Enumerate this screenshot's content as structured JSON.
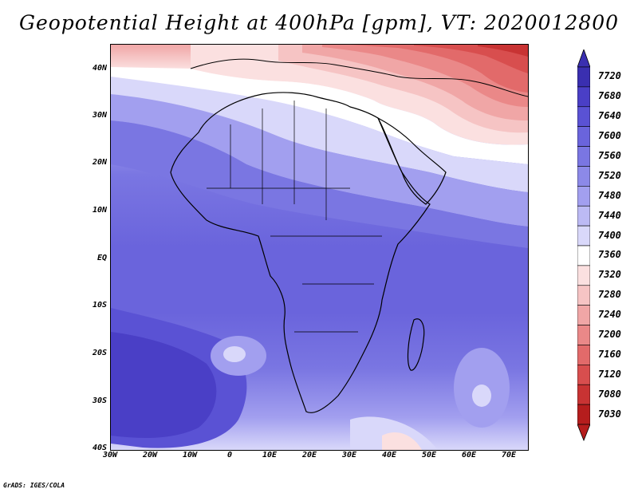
{
  "title": "Geopotential Height at 400hPa [gpm], VT: 2020012800",
  "credit": "GrADS: IGES/COLA",
  "lat_labels": [
    "40N",
    "30N",
    "20N",
    "10N",
    "EQ",
    "10S",
    "20S",
    "30S",
    "40S"
  ],
  "lon_labels": [
    "30W",
    "20W",
    "10W",
    "0",
    "10E",
    "20E",
    "30E",
    "40E",
    "50E",
    "60E",
    "70E"
  ],
  "colorbar": {
    "labels": [
      "7720",
      "7680",
      "7640",
      "7600",
      "7560",
      "7520",
      "7480",
      "7440",
      "7400",
      "7360",
      "7320",
      "7280",
      "7240",
      "7200",
      "7160",
      "7120",
      "7080",
      "7030"
    ],
    "colors": [
      "#3a2fb0",
      "#4a3fc6",
      "#5a52d4",
      "#6a64dc",
      "#7a76e2",
      "#8c89e8",
      "#a29fef",
      "#bcbaf4",
      "#d9d8fa",
      "#ffffff",
      "#fbe0e0",
      "#f6c4c4",
      "#f0a6a6",
      "#ea8888",
      "#e26a6a",
      "#d84e4e",
      "#c83333",
      "#b51d1d"
    ]
  },
  "map": {
    "field": "Geopotential Height at 400hPa",
    "units": "gpm",
    "valid_time": "2020012800",
    "lon_range": [
      -30,
      75
    ],
    "lat_range": [
      -40,
      45
    ]
  }
}
